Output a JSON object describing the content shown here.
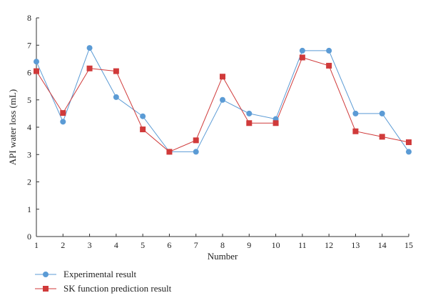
{
  "chart_data": {
    "type": "line",
    "title": "",
    "xlabel": "Number",
    "ylabel": "API water loss (mL)",
    "x": [
      1,
      2,
      3,
      4,
      5,
      6,
      7,
      8,
      9,
      10,
      11,
      12,
      13,
      14,
      15
    ],
    "xlim": [
      1,
      15
    ],
    "ylim": [
      0,
      8
    ],
    "yticks": [
      0,
      1,
      2,
      3,
      4,
      5,
      6,
      7,
      8
    ],
    "grid": false,
    "legend_position": "bottom-left",
    "series": [
      {
        "name": "Experimental result",
        "marker": "circle",
        "color": "#5b9bd5",
        "values": [
          6.4,
          4.2,
          6.9,
          5.1,
          4.4,
          3.1,
          3.1,
          5.0,
          4.5,
          4.3,
          6.8,
          6.8,
          4.5,
          4.5,
          3.1
        ]
      },
      {
        "name": "SK function prediction result",
        "marker": "square",
        "color": "#d03a3a",
        "values": [
          6.05,
          4.52,
          6.15,
          6.05,
          3.92,
          3.1,
          3.52,
          5.85,
          4.15,
          4.15,
          6.55,
          6.25,
          3.85,
          3.65,
          3.45
        ]
      }
    ]
  }
}
